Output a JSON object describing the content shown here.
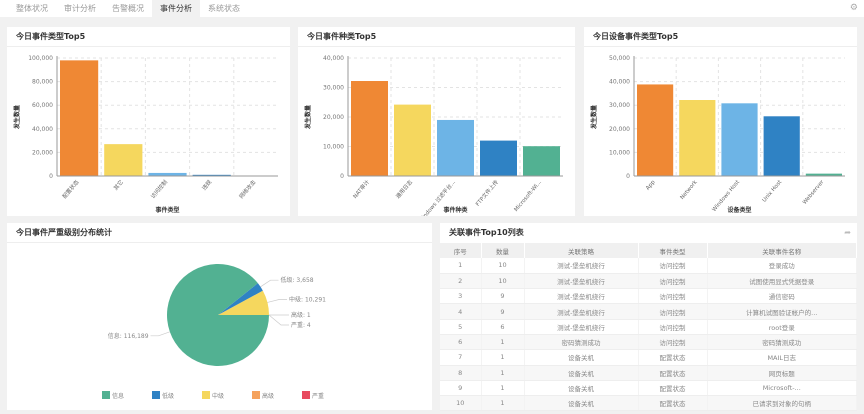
{
  "tabs": [
    "整体状况",
    "审计分析",
    "告警概况",
    "事件分析",
    "系统状态"
  ],
  "active_tab": 3,
  "charts": [
    {
      "type": "bar",
      "title": "今日事件类型Top5",
      "xlabel": "事件类型",
      "ylabel": "发生数量",
      "ylim": [
        0,
        100000
      ],
      "ticks": [
        "0",
        "20,000",
        "40,000",
        "60,000",
        "80,000",
        "100,000"
      ],
      "categories": [
        "配置状态",
        "其它",
        "访问控制",
        "违规",
        "网络攻击"
      ],
      "values": [
        98000,
        27000,
        2600,
        1000,
        200
      ],
      "colors": [
        "#ef8834",
        "#f5d75e",
        "#6db4e6",
        "#2f82c4",
        "#52b192"
      ]
    },
    {
      "type": "bar",
      "title": "今日事件种类Top5",
      "xlabel": "事件种类",
      "ylabel": "发生数量",
      "ylim": [
        0,
        40000
      ],
      "ticks": [
        "0",
        "10,000",
        "20,000",
        "30,000",
        "40,000"
      ],
      "categories": [
        "NAT审计",
        "通用日志",
        "Windows 过滤平台...",
        "FTP文件上传",
        "Microsoft-Wi..."
      ],
      "values": [
        32200,
        24200,
        19000,
        12000,
        10100
      ],
      "colors": [
        "#ef8834",
        "#f5d75e",
        "#6db4e6",
        "#2f82c4",
        "#52b192"
      ]
    },
    {
      "type": "bar",
      "title": "今日设备事件类型Top5",
      "xlabel": "设备类型",
      "ylabel": "发生数量",
      "ylim": [
        0,
        50000
      ],
      "ticks": [
        "0",
        "10,000",
        "20,000",
        "30,000",
        "40,000",
        "50,000"
      ],
      "categories": [
        "App",
        "Network",
        "Windows Host",
        "Unix Host",
        "Webserver"
      ],
      "values": [
        38800,
        32200,
        30800,
        25300,
        1000
      ],
      "colors": [
        "#ef8834",
        "#f5d75e",
        "#6db4e6",
        "#2f82c4",
        "#52b192"
      ]
    }
  ],
  "chart_data": {
    "type": "pie",
    "title": "今日事件严重级别分布统计",
    "legend_position": "bottom",
    "slices": [
      {
        "name": "严重",
        "value": 4,
        "label": "严重: 4",
        "color": "#e84a5f"
      },
      {
        "name": "高级",
        "value": 1,
        "label": "高级: 1",
        "color": "#f5a25d"
      },
      {
        "name": "中级",
        "value": 10291,
        "label": "中级: 10,291",
        "color": "#f5d75e"
      },
      {
        "name": "低级",
        "value": 3658,
        "label": "低级: 3,658",
        "color": "#2f82c4"
      },
      {
        "name": "信息",
        "value": 116189,
        "label": "信息: 116,189",
        "color": "#52b192"
      }
    ],
    "legend": [
      "信息",
      "低级",
      "中级",
      "高级",
      "严重"
    ]
  },
  "table": {
    "title": "关联事件Top10列表",
    "headers": [
      "序号",
      "数量",
      "关联策略",
      "事件类型",
      "关联事件名称"
    ],
    "rows": [
      [
        "1",
        "10",
        "测试-堡垒机绕行",
        "访问控制",
        "登录成功"
      ],
      [
        "2",
        "10",
        "测试-堡垒机绕行",
        "访问控制",
        "试图使用显式凭据登录"
      ],
      [
        "3",
        "9",
        "测试-堡垒机绕行",
        "访问控制",
        "通信密码"
      ],
      [
        "4",
        "9",
        "测试-堡垒机绕行",
        "访问控制",
        "计算机试图验证帐户的..."
      ],
      [
        "5",
        "6",
        "测试-堡垒机绕行",
        "访问控制",
        "root登录"
      ],
      [
        "6",
        "1",
        "密码猜测成功",
        "访问控制",
        "密码猜测成功"
      ],
      [
        "7",
        "1",
        "设备关机",
        "配置状态",
        "MAIL日志"
      ],
      [
        "8",
        "1",
        "设备关机",
        "配置状态",
        "网页标题"
      ],
      [
        "9",
        "1",
        "设备关机",
        "配置状态",
        "Microsoft-..."
      ],
      [
        "10",
        "1",
        "设备关机",
        "配置状态",
        "已请求到对象的句柄"
      ]
    ]
  }
}
